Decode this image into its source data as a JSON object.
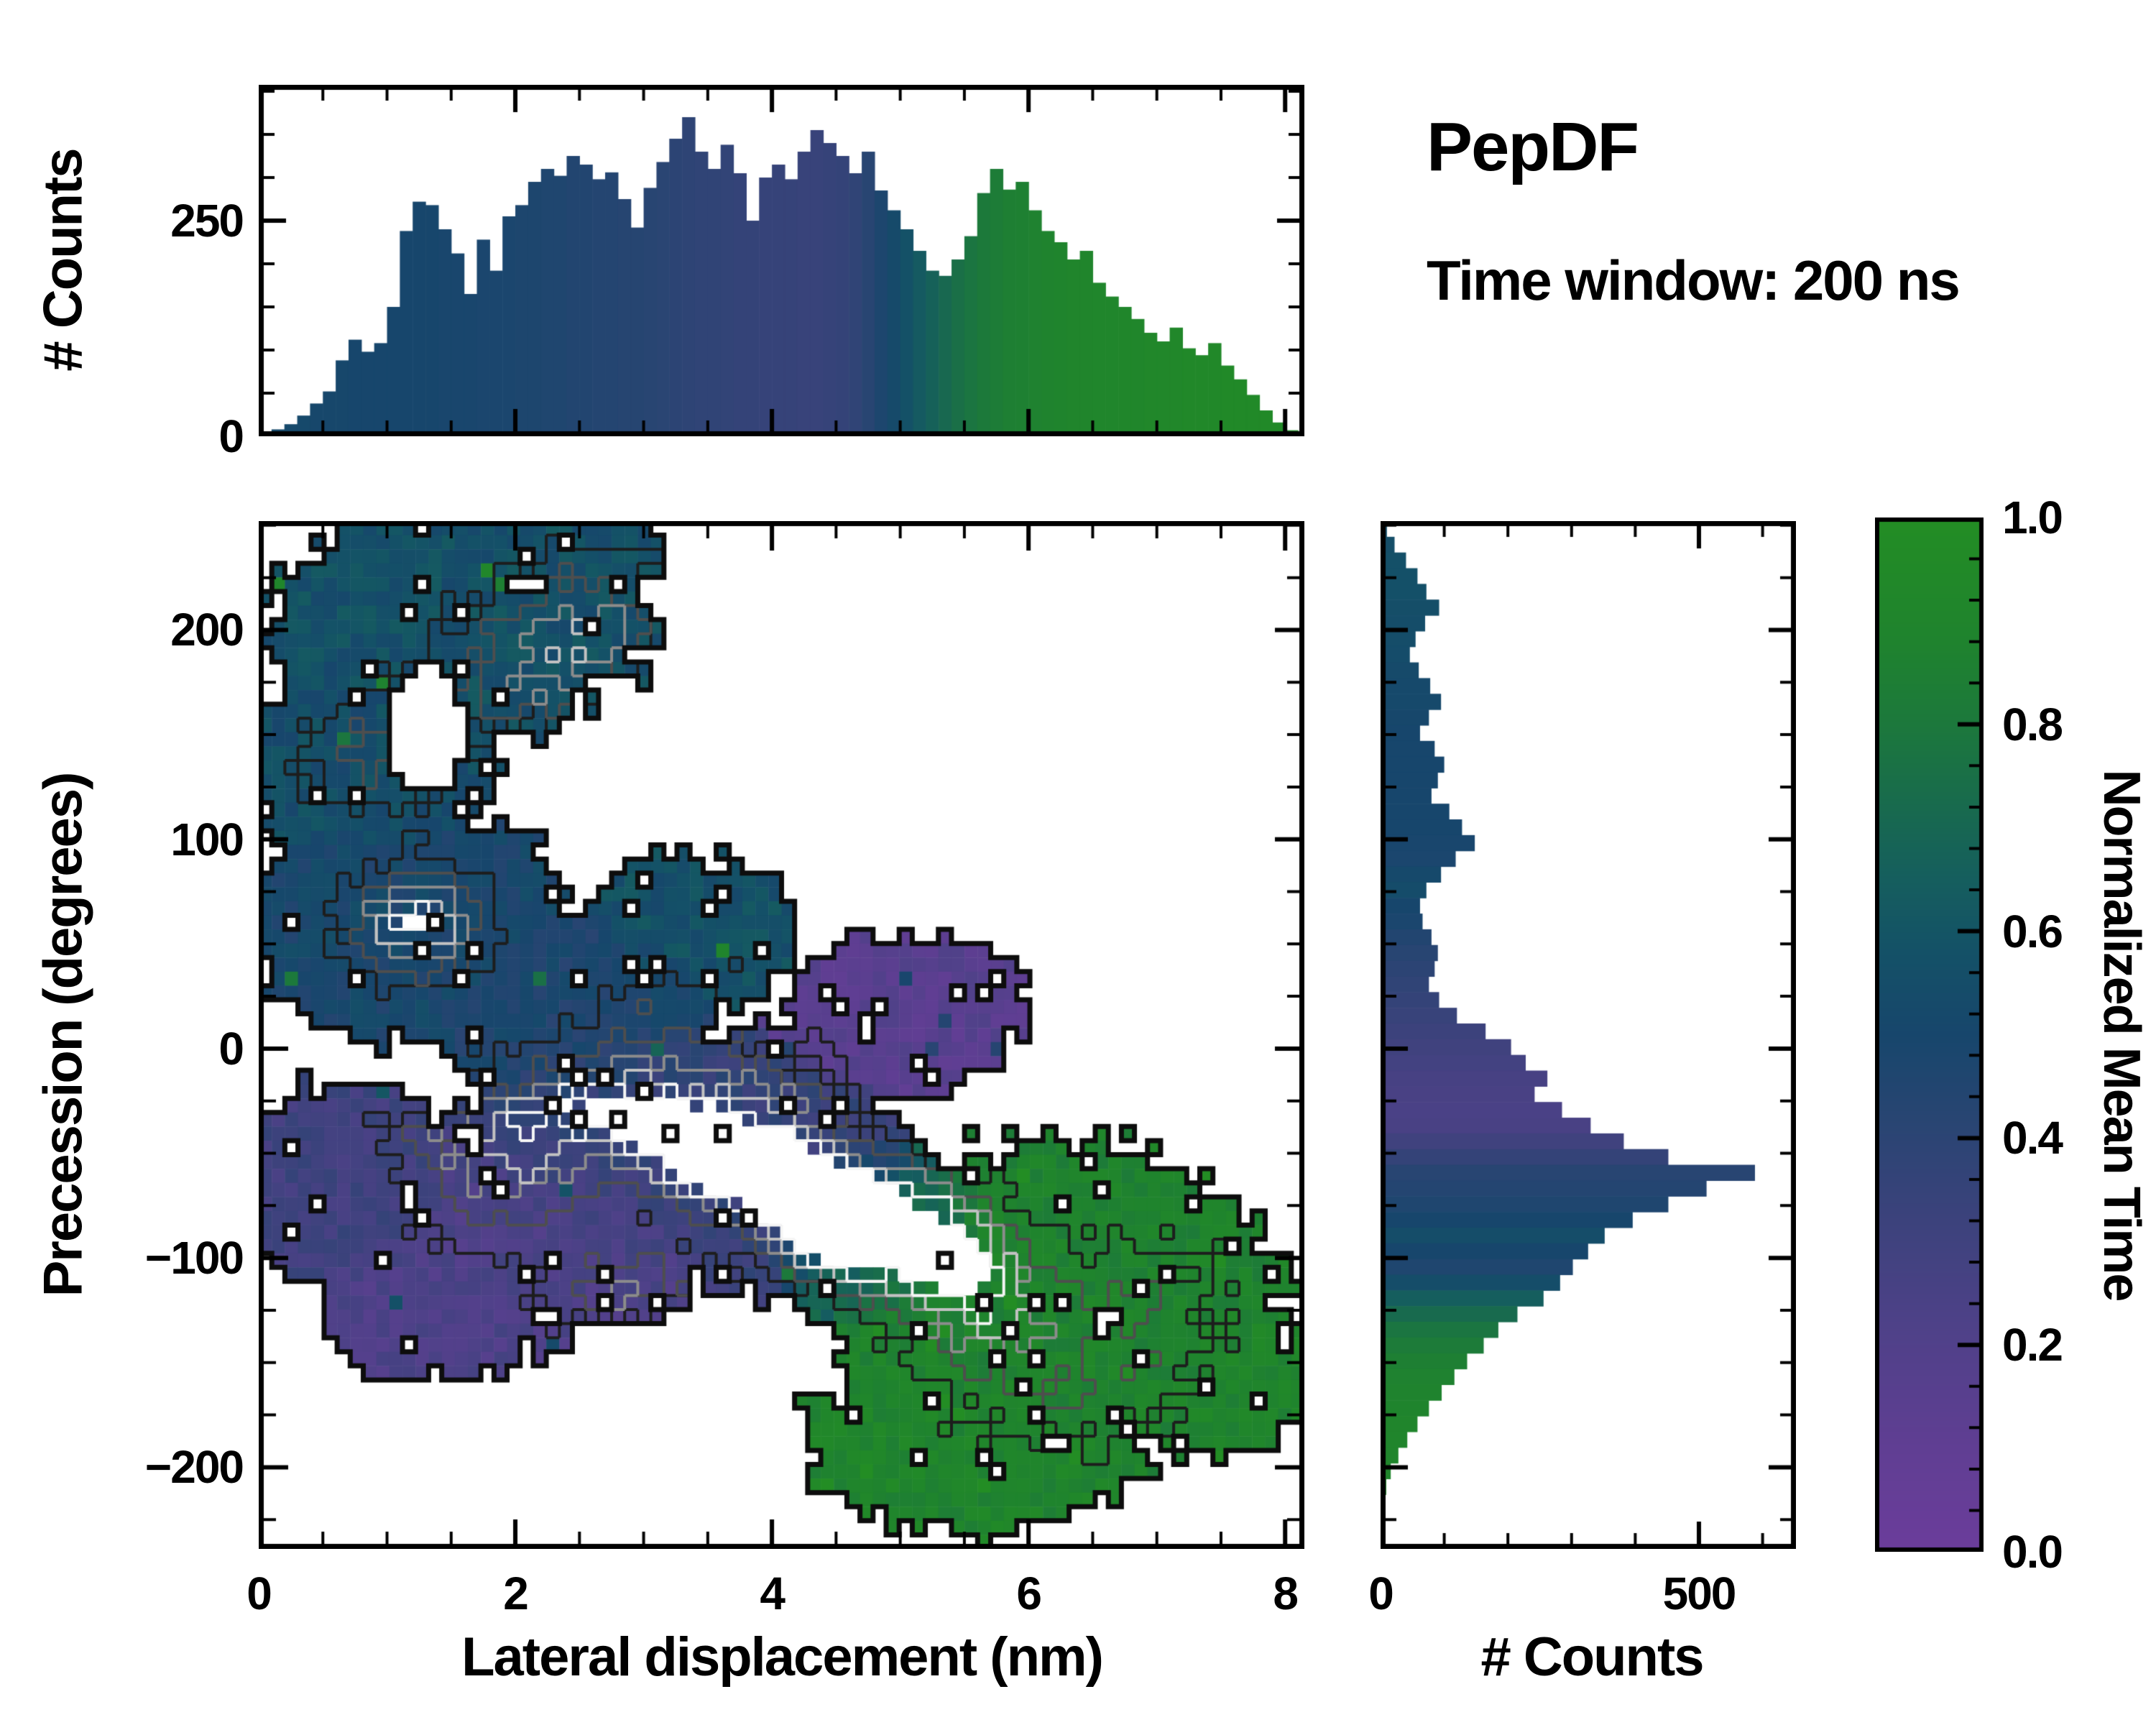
{
  "title": {
    "heading": "PepDF",
    "subtitle": "Time window: 200 ns"
  },
  "colorbar": {
    "label": "Normalized Mean Time",
    "tick_labels": [
      "1.0",
      "0.8",
      "0.6",
      "0.4",
      "0.2",
      "0.0"
    ],
    "tick_values": [
      1.0,
      0.8,
      0.6,
      0.4,
      0.2,
      0.0
    ],
    "minor_step": 0.04
  },
  "axes": {
    "top_hist": {
      "ylabel": "# Counts",
      "ytick_labels": [
        "0",
        "250"
      ],
      "ytick_values": [
        0,
        250
      ],
      "ymax": 405,
      "y_minor_step": 50
    },
    "main": {
      "xlabel": "Lateral displacement (nm)",
      "ylabel": "Precession (degrees)",
      "xtick_labels": [
        "0",
        "2",
        "4",
        "6",
        "8"
      ],
      "xtick_values": [
        0,
        2,
        4,
        6,
        8
      ],
      "xmin": 0,
      "xmax": 8.15,
      "x_minor_step": 0.5,
      "ytick_labels": [
        "200",
        "100",
        "0",
        "−100",
        "−200"
      ],
      "ytick_values": [
        200,
        100,
        0,
        -100,
        -200
      ],
      "ymin": -239,
      "ymax": 252,
      "y_minor_step": 25
    },
    "right_hist": {
      "xlabel": "# Counts",
      "xtick_labels": [
        "0",
        "500"
      ],
      "xtick_values": [
        0,
        500
      ],
      "xmax": 650,
      "x_minor_step": 100
    }
  },
  "chart_data": {
    "type": "heatmap",
    "description": "2D histogram of precession angle vs lateral displacement, colored by normalized mean time, with marginal count histograms and density contours",
    "colormap_stops": [
      [
        0.0,
        "#6b3d9b"
      ],
      [
        0.1,
        "#603e93"
      ],
      [
        0.22,
        "#4e4188"
      ],
      [
        0.32,
        "#3c427c"
      ],
      [
        0.42,
        "#284572"
      ],
      [
        0.5,
        "#17466c"
      ],
      [
        0.58,
        "#145167"
      ],
      [
        0.65,
        "#155e5e"
      ],
      [
        0.72,
        "#186a4e"
      ],
      [
        0.8,
        "#1c783c"
      ],
      [
        0.88,
        "#1f832e"
      ],
      [
        1.0,
        "#238d24"
      ]
    ],
    "top_histogram": {
      "x_start": 0.05,
      "bin_width": 0.1,
      "counts": [
        4,
        8,
        14,
        24,
        38,
        52,
        88,
        112,
        98,
        108,
        150,
        238,
        272,
        268,
        240,
        212,
        165,
        228,
        192,
        255,
        268,
        295,
        310,
        302,
        325,
        315,
        298,
        306,
        275,
        242,
        288,
        318,
        345,
        370,
        330,
        310,
        338,
        305,
        250,
        300,
        315,
        298,
        330,
        355,
        340,
        325,
        305,
        330,
        285,
        262,
        240,
        215,
        192,
        186,
        205,
        232,
        282,
        310,
        286,
        295,
        262,
        238,
        225,
        205,
        215,
        178,
        162,
        150,
        136,
        120,
        110,
        126,
        102,
        94,
        108,
        82,
        66,
        48,
        30,
        16,
        7
      ],
      "values": [
        0.52,
        0.52,
        0.52,
        0.52,
        0.51,
        0.51,
        0.51,
        0.5,
        0.5,
        0.5,
        0.5,
        0.5,
        0.5,
        0.5,
        0.49,
        0.49,
        0.49,
        0.48,
        0.48,
        0.48,
        0.47,
        0.47,
        0.46,
        0.46,
        0.45,
        0.45,
        0.44,
        0.44,
        0.43,
        0.43,
        0.42,
        0.41,
        0.4,
        0.39,
        0.38,
        0.38,
        0.37,
        0.36,
        0.36,
        0.35,
        0.35,
        0.35,
        0.34,
        0.34,
        0.35,
        0.36,
        0.38,
        0.42,
        0.47,
        0.53,
        0.58,
        0.63,
        0.67,
        0.71,
        0.75,
        0.78,
        0.81,
        0.83,
        0.85,
        0.86,
        0.87,
        0.88,
        0.89,
        0.9,
        0.9,
        0.91,
        0.91,
        0.92,
        0.92,
        0.93,
        0.93,
        0.93,
        0.94,
        0.94,
        0.94,
        0.95,
        0.95,
        0.95,
        0.95,
        0.95,
        0.95
      ]
    },
    "right_histogram": {
      "y_start": 248.25,
      "y_step": -7.5,
      "counts": [
        10,
        22,
        40,
        58,
        72,
        92,
        70,
        55,
        46,
        60,
        78,
        95,
        76,
        62,
        85,
        100,
        90,
        80,
        108,
        128,
        148,
        118,
        95,
        72,
        62,
        66,
        80,
        90,
        85,
        76,
        92,
        120,
        165,
        205,
        228,
        262,
        242,
        285,
        330,
        382,
        452,
        588,
        512,
        452,
        396,
        352,
        326,
        302,
        282,
        256,
        215,
        185,
        162,
        136,
        116,
        96,
        76,
        58,
        42,
        28,
        16,
        9,
        4
      ],
      "values": [
        0.56,
        0.56,
        0.57,
        0.57,
        0.57,
        0.56,
        0.55,
        0.55,
        0.54,
        0.53,
        0.52,
        0.52,
        0.51,
        0.5,
        0.5,
        0.5,
        0.5,
        0.5,
        0.5,
        0.5,
        0.49,
        0.48,
        0.52,
        0.54,
        0.5,
        0.48,
        0.45,
        0.42,
        0.4,
        0.38,
        0.36,
        0.34,
        0.32,
        0.3,
        0.28,
        0.26,
        0.25,
        0.24,
        0.25,
        0.3,
        0.36,
        0.42,
        0.44,
        0.46,
        0.5,
        0.55,
        0.5,
        0.46,
        0.55,
        0.65,
        0.72,
        0.78,
        0.82,
        0.85,
        0.87,
        0.88,
        0.89,
        0.9,
        0.9,
        0.9,
        0.9,
        0.9,
        0.9
      ]
    },
    "heatmap": {
      "x_range": [
        0,
        8.15
      ],
      "y_range": [
        -239,
        252
      ],
      "grid": {
        "cols": 80,
        "rows": 73
      },
      "base_density": 0.4,
      "dropout_fraction": 0.045,
      "blobs": [
        {
          "cx": 1.6,
          "cy": 205,
          "rx": 1.5,
          "ry": 58,
          "v": 0.57
        },
        {
          "cx": 2.4,
          "cy": 238,
          "rx": 0.8,
          "ry": 26,
          "v": 0.57
        },
        {
          "cx": 0.8,
          "cy": 140,
          "rx": 1.05,
          "ry": 50,
          "v": 0.55
        },
        {
          "cx": 1.15,
          "cy": 60,
          "rx": 1.3,
          "ry": 56,
          "v": 0.5
        },
        {
          "cx": 2.5,
          "cy": 18,
          "rx": 1.2,
          "ry": 50,
          "v": 0.47
        },
        {
          "cx": 3.35,
          "cy": 55,
          "rx": 0.8,
          "ry": 40,
          "v": 0.57
        },
        {
          "cx": 3.0,
          "cy": -45,
          "rx": 1.5,
          "ry": 62,
          "v": 0.36
        },
        {
          "cx": 2.3,
          "cy": -85,
          "rx": 1.35,
          "ry": 50,
          "v": 0.23
        },
        {
          "cx": 0.7,
          "cy": -65,
          "rx": 1.0,
          "ry": 50,
          "v": 0.3
        },
        {
          "cx": 1.5,
          "cy": -122,
          "rx": 1.05,
          "ry": 38,
          "v": 0.22
        },
        {
          "cx": 4.15,
          "cy": -62,
          "rx": 1.05,
          "ry": 58,
          "v": 0.34
        },
        {
          "cx": 5.0,
          "cy": 15,
          "rx": 1.0,
          "ry": 40,
          "v": 0.15
        },
        {
          "cx": 4.8,
          "cy": -88,
          "rx": 0.95,
          "ry": 48,
          "v": 0.68
        },
        {
          "cx": 6.2,
          "cy": -125,
          "rx": 1.8,
          "ry": 82,
          "v": 0.88
        },
        {
          "cx": 5.6,
          "cy": -185,
          "rx": 1.35,
          "ry": 48,
          "v": 0.9
        },
        {
          "cx": 7.6,
          "cy": -155,
          "rx": 0.65,
          "ry": 38,
          "v": 0.9
        }
      ],
      "hole": {
        "cx": 1.3,
        "cy": 152,
        "rx": 0.32,
        "ry": 30
      },
      "peaks": [
        [
          1.25,
          60,
          0.62,
          0.5,
          24
        ],
        [
          2.6,
          -28,
          0.5,
          0.55,
          22
        ],
        [
          3.35,
          -42,
          0.62,
          0.5,
          22
        ],
        [
          3.8,
          -58,
          0.66,
          0.55,
          24
        ],
        [
          4.3,
          -68,
          0.6,
          0.5,
          22
        ],
        [
          4.55,
          -92,
          0.55,
          0.45,
          20
        ],
        [
          5.0,
          -80,
          0.48,
          0.6,
          26
        ],
        [
          5.35,
          -100,
          0.45,
          0.55,
          24
        ],
        [
          5.65,
          -125,
          0.38,
          0.6,
          26
        ],
        [
          2.2,
          175,
          0.28,
          0.9,
          42
        ],
        [
          2.6,
          205,
          0.26,
          0.65,
          32
        ],
        [
          0.9,
          140,
          0.24,
          0.55,
          27
        ],
        [
          2.9,
          -120,
          0.33,
          0.65,
          27
        ],
        [
          2.0,
          -65,
          0.33,
          0.75,
          32
        ],
        [
          3.3,
          5,
          0.28,
          0.65,
          30
        ],
        [
          6.3,
          -160,
          0.2,
          0.9,
          38
        ],
        [
          6.9,
          -120,
          0.18,
          0.65,
          32
        ],
        [
          1.7,
          -35,
          0.3,
          0.6,
          26
        ],
        [
          4.1,
          -20,
          0.25,
          0.5,
          22
        ]
      ],
      "contour_levels": [
        {
          "level": 0.5,
          "color": "#1d1d1d",
          "width": 4
        },
        {
          "level": 0.63,
          "color": "#4e4e4e",
          "width": 4
        },
        {
          "level": 0.75,
          "color": "#8c8c8c",
          "width": 4
        },
        {
          "level": 0.85,
          "color": "#c2c2c2",
          "width": 4
        },
        {
          "level": 0.94,
          "color": "#f5f5f5",
          "width": 4
        }
      ],
      "outer_contour": {
        "color": "#0d0d0d",
        "width": 7
      }
    }
  }
}
